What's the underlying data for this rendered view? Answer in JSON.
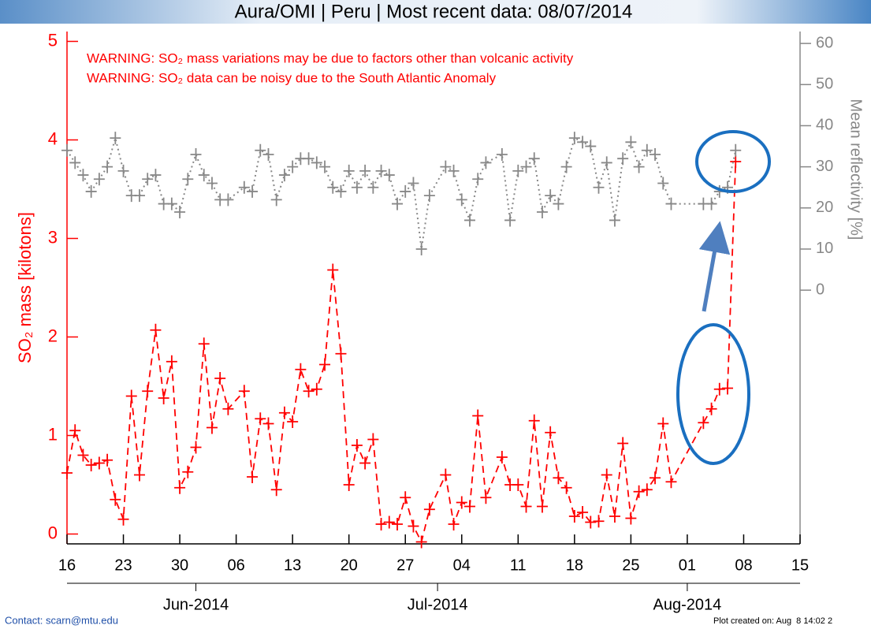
{
  "chart_data": {
    "type": "line",
    "title": "Aura/OMI | Peru | Most recent data: 08/07/2014",
    "annotations": [
      "WARNING: SO₂ mass variations may be due to factors other than volcanic activity",
      "WARNING: SO₂ data can be noisy due to the South Atlantic Anomaly"
    ],
    "ylabel": "SO₂ mass [kilotons]",
    "y2label": "Mean reflectivity [%]",
    "xlim": [
      "2014-05-16",
      "2014-08-15"
    ],
    "xticks": [
      {
        "value": "2014-05-16",
        "label": "16"
      },
      {
        "value": "2014-05-23",
        "label": "23"
      },
      {
        "value": "2014-05-30",
        "label": "30"
      },
      {
        "value": "2014-06-06",
        "label": "06"
      },
      {
        "value": "2014-06-13",
        "label": "13"
      },
      {
        "value": "2014-06-20",
        "label": "20"
      },
      {
        "value": "2014-06-27",
        "label": "27"
      },
      {
        "value": "2014-07-04",
        "label": "04"
      },
      {
        "value": "2014-07-11",
        "label": "11"
      },
      {
        "value": "2014-07-18",
        "label": "18"
      },
      {
        "value": "2014-07-25",
        "label": "25"
      },
      {
        "value": "2014-08-01",
        "label": "01"
      },
      {
        "value": "2014-08-08",
        "label": "08"
      },
      {
        "value": "2014-08-15",
        "label": "15"
      }
    ],
    "month_ticks": [
      {
        "value": "2014-06-01",
        "label": "Jun-2014"
      },
      {
        "value": "2014-07-01",
        "label": "Jul-2014"
      },
      {
        "value": "2014-08-01",
        "label": "Aug-2014"
      }
    ],
    "ylim": [
      -0.1,
      5.1
    ],
    "yticks": [
      0,
      1,
      2,
      3,
      4,
      5
    ],
    "y2lim": [
      -61.7,
      62.9
    ],
    "y2ticks": [
      0,
      10,
      20,
      30,
      40,
      50,
      60
    ],
    "x": [
      "2014-05-16",
      "2014-05-17",
      "2014-05-18",
      "2014-05-19",
      "2014-05-20",
      "2014-05-21",
      "2014-05-22",
      "2014-05-23",
      "2014-05-24",
      "2014-05-25",
      "2014-05-26",
      "2014-05-27",
      "2014-05-28",
      "2014-05-29",
      "2014-05-30",
      "2014-05-31",
      "2014-06-01",
      "2014-06-02",
      "2014-06-03",
      "2014-06-04",
      "2014-06-05",
      "2014-06-07",
      "2014-06-08",
      "2014-06-09",
      "2014-06-10",
      "2014-06-11",
      "2014-06-12",
      "2014-06-13",
      "2014-06-14",
      "2014-06-15",
      "2014-06-16",
      "2014-06-17",
      "2014-06-18",
      "2014-06-19",
      "2014-06-20",
      "2014-06-21",
      "2014-06-22",
      "2014-06-23",
      "2014-06-24",
      "2014-06-25",
      "2014-06-26",
      "2014-06-27",
      "2014-06-28",
      "2014-06-29",
      "2014-06-30",
      "2014-07-02",
      "2014-07-03",
      "2014-07-04",
      "2014-07-05",
      "2014-07-06",
      "2014-07-07",
      "2014-07-09",
      "2014-07-10",
      "2014-07-11",
      "2014-07-12",
      "2014-07-13",
      "2014-07-14",
      "2014-07-15",
      "2014-07-16",
      "2014-07-17",
      "2014-07-18",
      "2014-07-19",
      "2014-07-20",
      "2014-07-21",
      "2014-07-22",
      "2014-07-23",
      "2014-07-24",
      "2014-07-25",
      "2014-07-26",
      "2014-07-27",
      "2014-07-28",
      "2014-07-29",
      "2014-07-30",
      "2014-08-03",
      "2014-08-04",
      "2014-08-05",
      "2014-08-06",
      "2014-08-07"
    ],
    "series": [
      {
        "color": "#ff0000",
        "line_style": "dashed",
        "axis": "y",
        "values": [
          0.62,
          1.05,
          0.8,
          0.7,
          0.72,
          0.75,
          0.35,
          0.15,
          1.4,
          0.6,
          1.45,
          2.07,
          1.38,
          1.75,
          0.47,
          0.63,
          0.88,
          1.93,
          1.08,
          1.58,
          1.27,
          1.45,
          0.58,
          1.17,
          1.12,
          0.45,
          1.23,
          1.14,
          1.67,
          1.45,
          1.47,
          1.72,
          2.68,
          1.83,
          0.5,
          0.9,
          0.72,
          0.96,
          0.1,
          0.12,
          0.1,
          0.37,
          0.08,
          -0.08,
          0.25,
          0.6,
          0.1,
          0.32,
          0.28,
          1.2,
          0.37,
          0.78,
          0.5,
          0.5,
          0.28,
          1.15,
          0.28,
          1.03,
          0.57,
          0.47,
          0.18,
          0.22,
          0.12,
          0.13,
          0.6,
          0.18,
          0.92,
          0.16,
          0.43,
          0.45,
          0.57,
          1.12,
          0.53,
          1.13,
          1.27,
          1.47,
          1.48,
          3.78
        ]
      },
      {
        "color": "#888888",
        "line_style": "dotted",
        "axis": "y2",
        "values": [
          34,
          31,
          28,
          24,
          27,
          30,
          37,
          29,
          23,
          23,
          27,
          28,
          21,
          21,
          19,
          27,
          33,
          28,
          26,
          22,
          22,
          25,
          24,
          34,
          33,
          22,
          28,
          30,
          32,
          32,
          31,
          30,
          25,
          24,
          29,
          25,
          29,
          25,
          29,
          28,
          21,
          24,
          26,
          10,
          23,
          30,
          29,
          22,
          17,
          27,
          31,
          33,
          17,
          29,
          30,
          32,
          19,
          23,
          21,
          30,
          37,
          36,
          35,
          25,
          31,
          17,
          32,
          36,
          30,
          34,
          33,
          26,
          21,
          21,
          21,
          24,
          25,
          34
        ]
      }
    ]
  },
  "footer": {
    "contact": "Contact: scarn@mtu.edu",
    "created": "Plot created on: Aug  8 14:02 2"
  }
}
